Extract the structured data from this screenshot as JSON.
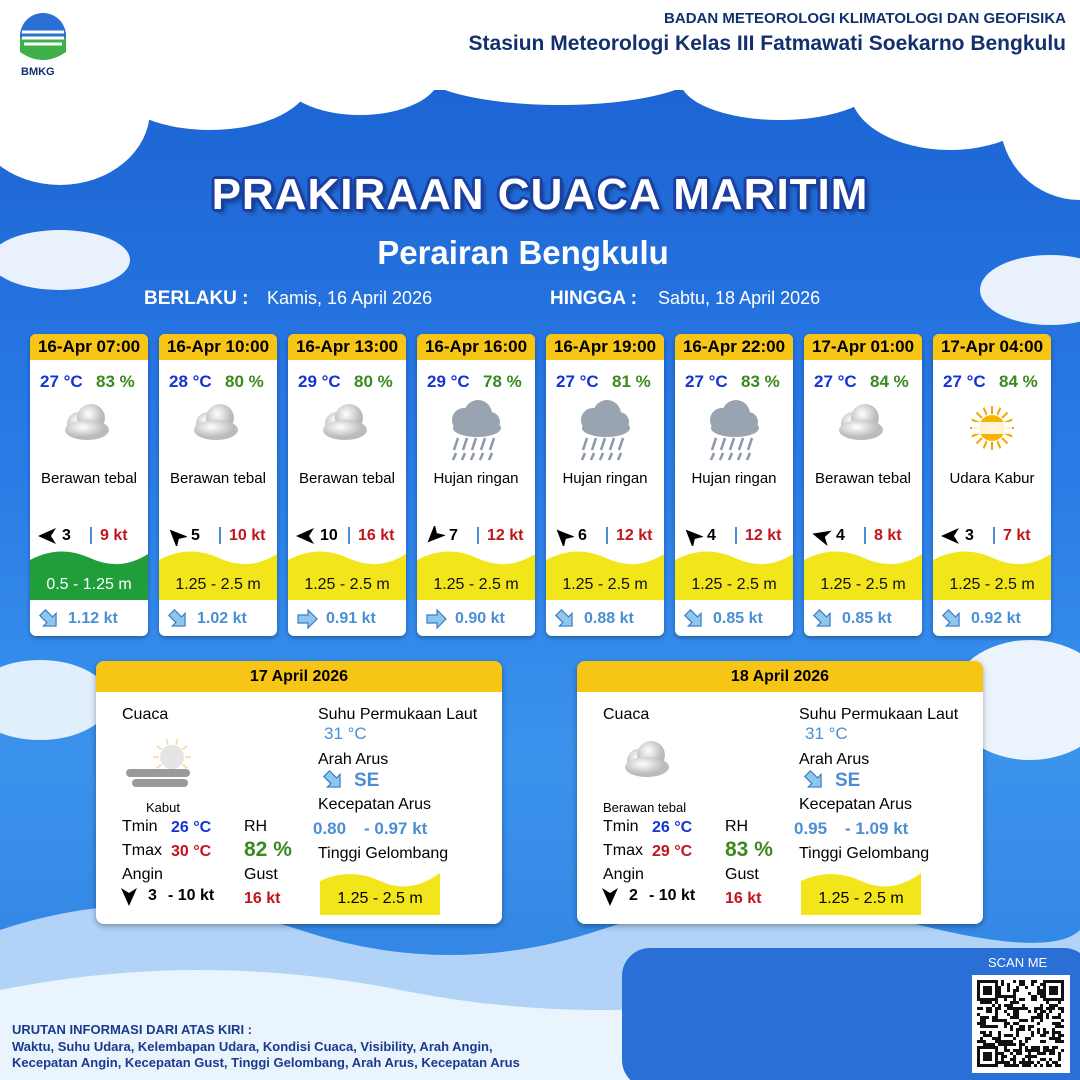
{
  "header": {
    "logo_text": "BMKG",
    "org": "BADAN METEOROLOGI KLIMATOLOGI DAN GEOFISIKA",
    "station": "Stasiun Meteorologi Kelas III Fatmawati Soekarno Bengkulu"
  },
  "title": "PRAKIRAAN CUACA MARITIM",
  "subtitle": "Perairan Bengkulu",
  "validity": {
    "from_label": "BERLAKU :",
    "from": "Kamis, 16 April 2026",
    "to_label": "HINGGA :",
    "to": "Sabtu, 18 April 2026"
  },
  "cards": [
    {
      "time": "16-Apr 07:00",
      "temp": "27 °C",
      "rh": "83 %",
      "weather": "Berawan tebal",
      "wind": "3",
      "gust": "9 kt",
      "wave": "0.5 - 1.25 m",
      "wave_color": "#1f9e3a",
      "current": "1.12 kt"
    },
    {
      "time": "16-Apr 10:00",
      "temp": "28 °C",
      "rh": "80 %",
      "weather": "Berawan tebal",
      "wind": "5",
      "gust": "10 kt",
      "wave": "1.25 - 2.5 m",
      "wave_color": "#f2e51a",
      "current": "1.02 kt"
    },
    {
      "time": "16-Apr 13:00",
      "temp": "29 °C",
      "rh": "80 %",
      "weather": "Berawan tebal",
      "wind": "10",
      "gust": "16 kt",
      "wave": "1.25 - 2.5 m",
      "wave_color": "#f2e51a",
      "current": "0.91 kt"
    },
    {
      "time": "16-Apr 16:00",
      "temp": "29 °C",
      "rh": "78 %",
      "weather": "Hujan ringan",
      "wind": "7",
      "gust": "12 kt",
      "wave": "1.25 - 2.5 m",
      "wave_color": "#f2e51a",
      "current": "0.90 kt"
    },
    {
      "time": "16-Apr 19:00",
      "temp": "27 °C",
      "rh": "81 %",
      "weather": "Hujan ringan",
      "wind": "6",
      "gust": "12 kt",
      "wave": "1.25 - 2.5 m",
      "wave_color": "#f2e51a",
      "current": "0.88 kt"
    },
    {
      "time": "16-Apr 22:00",
      "temp": "27 °C",
      "rh": "83 %",
      "weather": "Hujan ringan",
      "wind": "4",
      "gust": "12 kt",
      "wave": "1.25 - 2.5 m",
      "wave_color": "#f2e51a",
      "current": "0.85 kt"
    },
    {
      "time": "17-Apr 01:00",
      "temp": "27 °C",
      "rh": "84 %",
      "weather": "Berawan tebal",
      "wind": "4",
      "gust": "8 kt",
      "wave": "1.25 - 2.5 m",
      "wave_color": "#f2e51a",
      "current": "0.85 kt"
    },
    {
      "time": "17-Apr 04:00",
      "temp": "27 °C",
      "rh": "84 %",
      "weather": "Udara Kabur",
      "wind": "3",
      "gust": "7 kt",
      "wave": "1.25 - 2.5 m",
      "wave_color": "#f2e51a",
      "current": "0.92 kt"
    }
  ],
  "daily_labels": {
    "weather": "Cuaca",
    "sst": "Suhu Permukaan Laut",
    "current_dir": "Arah Arus",
    "current_speed": "Kecepatan Arus",
    "tmin": "Tmin",
    "tmax": "Tmax",
    "rh": "RH",
    "wind": "Angin",
    "gust": "Gust",
    "wave": "Tinggi Gelombang"
  },
  "daily": [
    {
      "date": "17 April 2026",
      "weather": "Kabut",
      "sst": "31 °C",
      "current_dir": "SE",
      "current_min": "0.80",
      "current_max": "- 0.97 kt",
      "tmin": "26 °C",
      "tmax": "30 °C",
      "rh": "82 %",
      "wind_min": "3",
      "wind_max": "- 10 kt",
      "gust": "16 kt",
      "wave": "1.25 - 2.5 m"
    },
    {
      "date": "18 April 2026",
      "weather": "Berawan tebal",
      "sst": "31 °C",
      "current_dir": "SE",
      "current_min": "0.95",
      "current_max": "- 1.09 kt",
      "tmin": "26 °C",
      "tmax": "29 °C",
      "rh": "83 %",
      "wind_min": "2",
      "wind_max": "- 10 kt",
      "gust": "16 kt",
      "wave": "1.25 - 2.5 m"
    }
  ],
  "footer": {
    "scan": "SCAN ME",
    "info_title": "URUTAN INFORMASI DARI ATAS KIRI :",
    "info_lines": [
      "Waktu, Suhu Udara, Kelembapan Udara, Kondisi Cuaca, Visibility, Arah Angin,",
      "Kecepatan Angin, Kecepatan Gust, Tinggi Gelombang, Arah Arus, Kecepatan Arus"
    ]
  }
}
